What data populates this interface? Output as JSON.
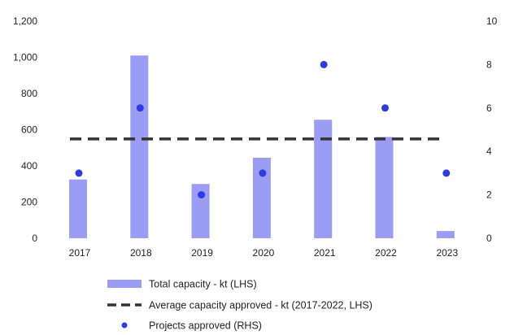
{
  "chart_data": {
    "type": "bar",
    "categories": [
      "2017",
      "2018",
      "2019",
      "2020",
      "2021",
      "2022",
      "2023"
    ],
    "series": [
      {
        "name": "Total capacity - kt (LHS)",
        "type": "bar",
        "axis": "left",
        "color": "#9b9cf3",
        "values": [
          325,
          1010,
          300,
          445,
          655,
          560,
          40
        ]
      },
      {
        "name": "Average capacity approved - kt (2017-2022, LHS)",
        "type": "line",
        "style": "dashed",
        "axis": "left",
        "color": "#333333",
        "values": [
          549,
          549,
          549,
          549,
          549,
          549,
          549
        ]
      },
      {
        "name": "Projects approved (RHS)",
        "type": "scatter",
        "axis": "right",
        "color": "#2d3be0",
        "values": [
          3,
          6,
          2,
          3,
          8,
          6,
          3
        ]
      }
    ],
    "y_left": {
      "min": 0,
      "max": 1200,
      "ticks": [
        "0",
        "200",
        "400",
        "600",
        "800",
        "1,000",
        "1,200"
      ]
    },
    "y_right": {
      "min": 0,
      "max": 10,
      "ticks": [
        "0",
        "2",
        "4",
        "6",
        "8",
        "10"
      ]
    },
    "legend": {
      "placement": "bottom",
      "items": [
        {
          "label": "Total capacity - kt (LHS)",
          "symbol": "bar"
        },
        {
          "label": "Average capacity approved - kt (2017-2022, LHS)",
          "symbol": "dash"
        },
        {
          "label": "Projects approved (RHS)",
          "symbol": "dot"
        }
      ]
    },
    "grid": false
  }
}
